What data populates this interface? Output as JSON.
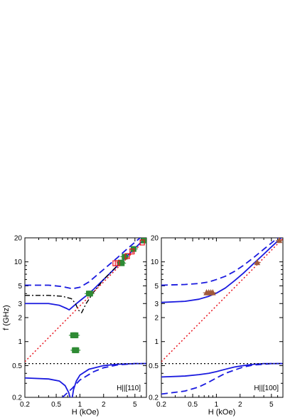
{
  "chart_data": [
    {
      "type": "line",
      "panel": "left",
      "xscale": "log",
      "yscale": "log",
      "xlim": [
        0.2,
        7
      ],
      "ylim": [
        0.2,
        20
      ],
      "xticks": [
        "0.2",
        "0.5",
        "1",
        "2",
        "5"
      ],
      "yticks": [
        "0.2",
        "0.5",
        "1",
        "2",
        "3",
        "5",
        "10",
        "20"
      ],
      "xlabel": "H (kOe)",
      "ylabel": "f (GHz)",
      "annotation": "H||[110]",
      "colors": {
        "blue": "#1a1adf",
        "red": "#e8141e",
        "black": "#000000",
        "green": "#2e8b34",
        "brown": "#a05a3c"
      },
      "series": [
        {
          "style": "blue-dashed",
          "x": [
            0.2,
            0.4,
            0.6,
            0.8,
            1.0,
            1.3,
            1.7,
            2.2,
            3,
            4,
            5,
            6,
            7
          ],
          "y": [
            5.1,
            5.1,
            4.9,
            4.6,
            4.8,
            5.6,
            7.0,
            8.7,
            11.3,
            14.6,
            17.6,
            20.5,
            23.0
          ]
        },
        {
          "style": "blue-dashed",
          "x": [
            0.6,
            0.8,
            1.0,
            1.5,
            2,
            3,
            5,
            7
          ],
          "y": [
            0.2,
            0.26,
            0.33,
            0.42,
            0.47,
            0.51,
            0.53,
            0.53
          ]
        },
        {
          "style": "blue-solid",
          "x": [
            0.2,
            0.4,
            0.55,
            0.68,
            0.73,
            0.85,
            1.0,
            1.2,
            1.5,
            2,
            3,
            5,
            7
          ],
          "y": [
            3.0,
            3.0,
            2.85,
            2.6,
            2.5,
            2.85,
            3.25,
            3.75,
            4.55,
            6.0,
            8.9,
            14.8,
            20.5
          ]
        },
        {
          "style": "blue-solid",
          "x": [
            0.2,
            0.4,
            0.55,
            0.65,
            0.72,
            0.75
          ],
          "y": [
            0.35,
            0.34,
            0.32,
            0.28,
            0.23,
            0.2
          ]
        },
        {
          "style": "blue-solid",
          "x": [
            0.8,
            0.83,
            0.9,
            1.0,
            1.3,
            2,
            3,
            5,
            7
          ],
          "y": [
            0.2,
            0.25,
            0.32,
            0.38,
            0.45,
            0.5,
            0.52,
            0.53,
            0.53
          ]
        },
        {
          "style": "black-dashdot",
          "x": [
            0.2,
            0.4,
            0.6,
            0.78,
            0.88,
            0.95,
            1.05,
            1.2,
            1.5,
            2,
            3
          ],
          "y": [
            3.8,
            3.8,
            3.7,
            3.45,
            3.0,
            2.5,
            2.3,
            3.0,
            4.2,
            6.0,
            9.0
          ]
        },
        {
          "style": "red-dotted",
          "x": [
            0.2,
            7
          ],
          "y": [
            0.56,
            19.6
          ]
        },
        {
          "style": "black-dotted",
          "x": [
            0.2,
            7
          ],
          "y": [
            0.53,
            0.53
          ]
        }
      ],
      "points": [
        {
          "marker": "green-square",
          "x": [
            0.82,
            0.84,
            0.86,
            0.88,
            0.86,
            0.88,
            0.9,
            1.3,
            1.35,
            3.3,
            3.4,
            3.7,
            4.8,
            6.5
          ],
          "y": [
            1.2,
            1.2,
            1.2,
            1.2,
            0.78,
            0.78,
            0.78,
            4.0,
            4.0,
            9.8,
            9.6,
            11.6,
            14.5,
            18.5
          ]
        },
        {
          "marker": "red-open-square",
          "x": [
            2.8,
            3.0,
            4.0,
            4.6,
            6.2
          ],
          "y": [
            9.6,
            9.6,
            11.8,
            13.5,
            17.5
          ]
        }
      ]
    },
    {
      "type": "line",
      "panel": "right",
      "xscale": "log",
      "yscale": "log",
      "xlim": [
        0.2,
        7
      ],
      "ylim": [
        0.2,
        20
      ],
      "xticks": [
        "0.2",
        "0.5",
        "1",
        "2",
        "5"
      ],
      "yticks": [
        "0.2",
        "0.5",
        "1",
        "2",
        "3",
        "5",
        "10",
        "20"
      ],
      "xlabel": "H (kOe)",
      "ylabel": "",
      "annotation": "H||[100]",
      "series": [
        {
          "style": "blue-dashed",
          "x": [
            0.2,
            0.4,
            0.6,
            0.8,
            1.0,
            1.3,
            1.7,
            2.2,
            3,
            4,
            5,
            6,
            7
          ],
          "y": [
            5.1,
            5.2,
            5.35,
            5.6,
            6.0,
            6.6,
            7.6,
            9.0,
            11.4,
            14.4,
            17.2,
            20.0,
            22.5
          ]
        },
        {
          "style": "blue-dashed",
          "x": [
            0.2,
            0.4,
            0.6,
            0.8,
            1.0,
            1.3,
            1.7,
            2.2,
            3,
            4,
            5,
            7
          ],
          "y": [
            0.22,
            0.24,
            0.27,
            0.31,
            0.35,
            0.4,
            0.44,
            0.48,
            0.51,
            0.52,
            0.53,
            0.53
          ]
        },
        {
          "style": "blue-solid",
          "x": [
            0.2,
            0.4,
            0.6,
            0.8,
            1.0,
            1.3,
            1.7,
            2.2,
            3,
            4,
            5,
            6,
            7
          ],
          "y": [
            3.1,
            3.2,
            3.4,
            3.7,
            4.05,
            4.7,
            5.8,
            7.2,
            9.6,
            12.5,
            15.4,
            18.2,
            21.0
          ]
        },
        {
          "style": "blue-solid",
          "x": [
            0.2,
            0.4,
            0.6,
            0.8,
            1.0,
            1.3,
            1.7,
            2.2,
            3,
            4,
            5,
            7
          ],
          "y": [
            0.36,
            0.37,
            0.385,
            0.4,
            0.42,
            0.45,
            0.48,
            0.5,
            0.52,
            0.53,
            0.53,
            0.53
          ]
        },
        {
          "style": "red-dotted",
          "x": [
            0.2,
            7
          ],
          "y": [
            0.56,
            19.6
          ]
        },
        {
          "style": "black-dotted",
          "x": [
            0.2,
            7
          ],
          "y": [
            0.53,
            0.53
          ]
        }
      ],
      "points": [
        {
          "marker": "brown-triangle",
          "x": [
            0.75,
            0.8,
            0.85,
            0.9,
            3.3,
            6.3
          ],
          "y": [
            4.1,
            4.1,
            4.1,
            4.1,
            9.8,
            18.5
          ]
        }
      ]
    }
  ]
}
